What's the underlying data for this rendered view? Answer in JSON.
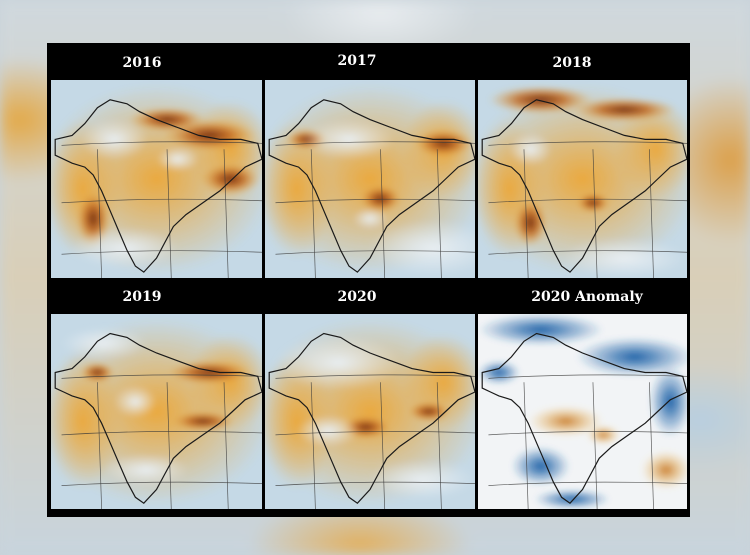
{
  "panels": [
    {
      "id": "p2016",
      "label": "2016",
      "type": "year"
    },
    {
      "id": "p2017",
      "label": "2017",
      "type": "year"
    },
    {
      "id": "p2018",
      "label": "2018",
      "type": "year"
    },
    {
      "id": "p2019",
      "label": "2019",
      "type": "year"
    },
    {
      "id": "p2020",
      "label": "2020",
      "type": "year"
    },
    {
      "id": "panom",
      "label": "2020 Anomaly",
      "type": "anomaly"
    }
  ],
  "colors": {
    "background_clean": "#c5d9e6",
    "low": "#e8eef2",
    "mid": "#eaa93f",
    "high": "#6e2a0e",
    "anomaly_negative": "#1f63a8",
    "anomaly_neutral": "#f2f4f6",
    "anomaly_positive": "#c5721d",
    "border": "#1a1a1a",
    "grid": "#3a3a3a",
    "label_bg": "#000000",
    "label_text": "#ffffff"
  }
}
